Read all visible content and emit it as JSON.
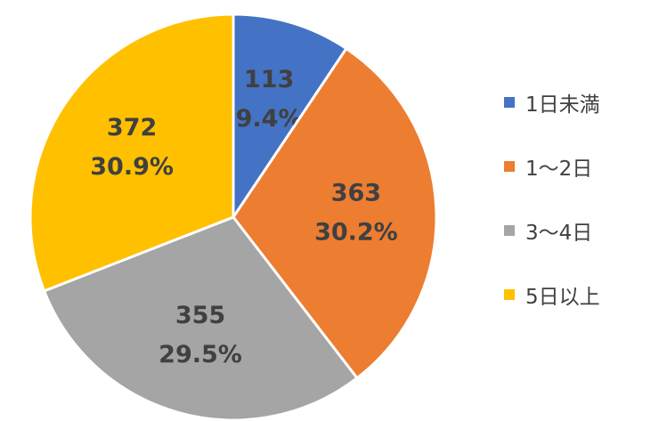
{
  "chart_data": {
    "type": "pie",
    "title": "",
    "categories": [
      "1日未満",
      "1～2日",
      "3～4日",
      "5日以上"
    ],
    "values": [
      113,
      363,
      355,
      372
    ],
    "percent_labels": [
      "9.4%",
      "30.2%",
      "29.5%",
      "30.9%"
    ],
    "colors": [
      "#4472C4",
      "#ED7D31",
      "#A5A5A5",
      "#FFC000"
    ],
    "start_angle": "12 o'clock",
    "direction": "clockwise",
    "slice_border_color": "#ffffff",
    "legend_placement": "right",
    "label_color": "#404040"
  }
}
